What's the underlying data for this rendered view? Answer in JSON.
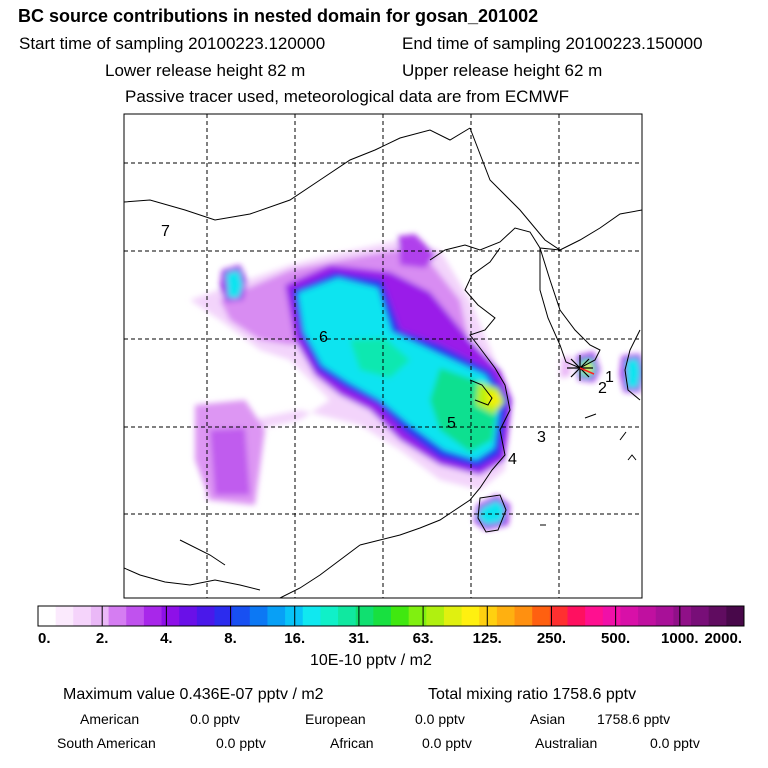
{
  "header": {
    "title": "BC  source contributions in nested domain for gosan_201002",
    "start_label": "Start time of sampling 20100223.120000",
    "end_label": "End time of sampling 20100223.150000",
    "lower_label": "Lower release height   82 m",
    "upper_label": "Upper release height   62 m",
    "info": "Passive tracer used, meteorological data are from ECMWF"
  },
  "map": {
    "source_labels": [
      "1",
      "2",
      "3",
      "4",
      "5",
      "6",
      "7"
    ],
    "release_marker": "star-icon"
  },
  "colorbar": {
    "tick_labels": [
      "0.",
      "2.",
      "4.",
      "8.",
      "16.",
      "31.",
      "63.",
      "125.",
      "250.",
      "500.",
      "1000.",
      "2000."
    ],
    "unit_label": "10E-10 pptv / m2",
    "colors": [
      "#ffffff",
      "#fbeafd",
      "#f5d4fb",
      "#eab8f7",
      "#d57df2",
      "#c052ee",
      "#a827ea",
      "#8e10e8",
      "#6a10e8",
      "#4a18ea",
      "#2c2cee",
      "#1850f2",
      "#0c78f4",
      "#08a0f6",
      "#08c4f8",
      "#10e8f0",
      "#10f0c8",
      "#10e8a0",
      "#10e070",
      "#18e040",
      "#40e810",
      "#80f010",
      "#b0f010",
      "#e0f010",
      "#fff010",
      "#ffd010",
      "#ffb010",
      "#ff9010",
      "#ff6010",
      "#ff3030",
      "#ff1060",
      "#ff1090",
      "#f010a8",
      "#d810a8",
      "#c010a0",
      "#a81098",
      "#901088",
      "#780e78",
      "#600c60",
      "#48084a"
    ]
  },
  "footer": {
    "max_value": "Maximum value  0.436E-07 pptv / m2",
    "total_mixing": "Total mixing ratio     1758.6 pptv",
    "american_label": "American",
    "american_value": "0.0 pptv",
    "european_label": "European",
    "european_value": "0.0 pptv",
    "asian_label": "Asian",
    "asian_value": "1758.6 pptv",
    "south_american_label": "South American",
    "south_american_value": "0.0 pptv",
    "african_label": "African",
    "african_value": "0.0 pptv",
    "australian_label": "Australian",
    "australian_value": "0.0 pptv"
  }
}
